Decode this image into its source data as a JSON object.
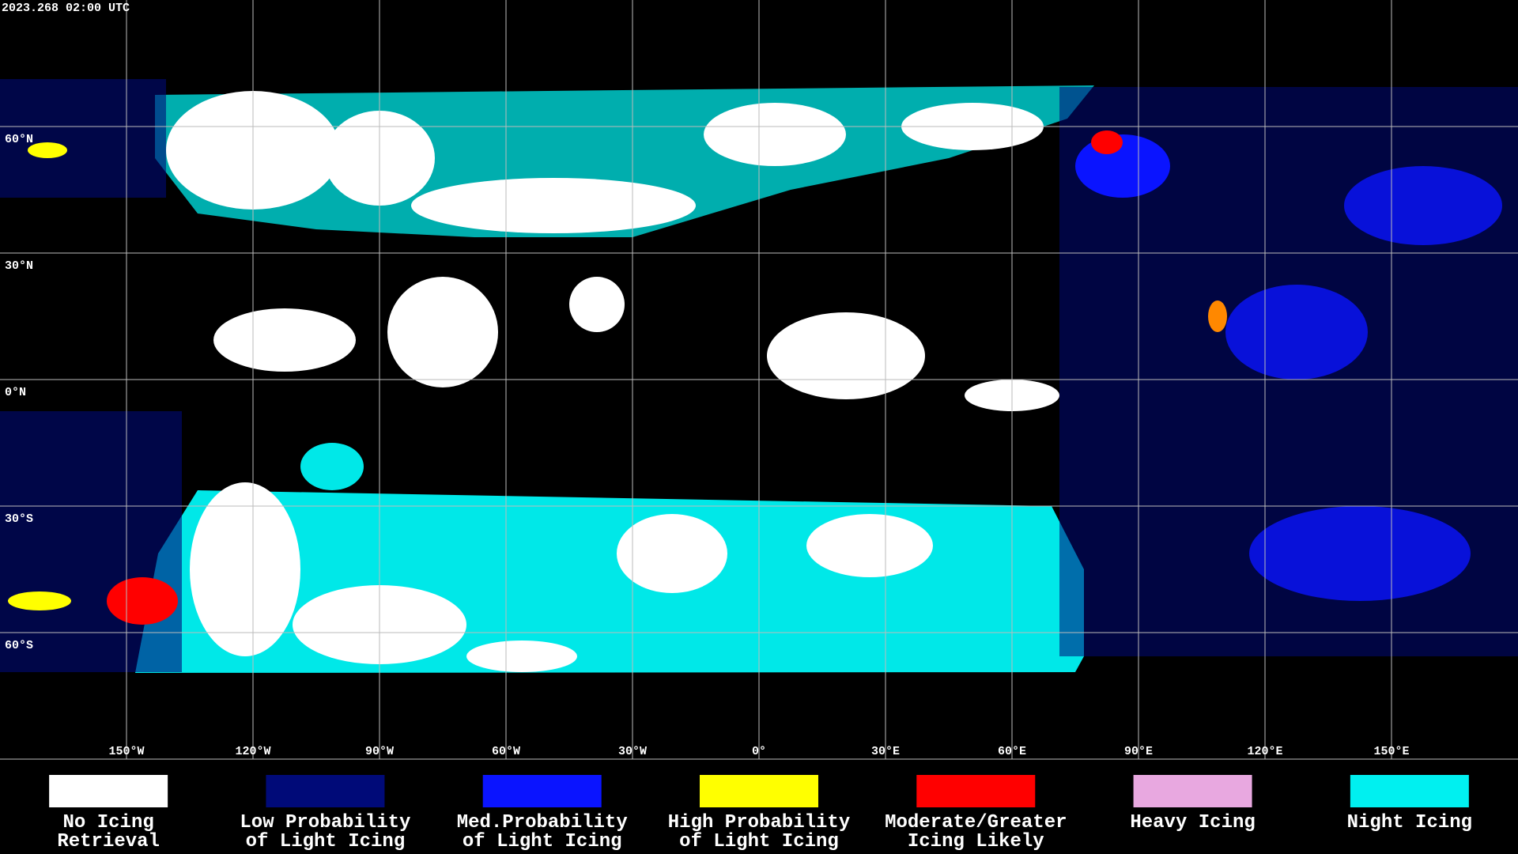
{
  "header": {
    "timestamp": "2023.268 02:00 UTC"
  },
  "map": {
    "lat_labels": [
      "60°N",
      "30°N",
      "0°N",
      "30°S",
      "60°S"
    ],
    "lon_labels": [
      "150°W",
      "120°W",
      "90°W",
      "60°W",
      "30°W",
      "0°",
      "30°E",
      "60°E",
      "90°E",
      "120°E",
      "150°E"
    ]
  },
  "legend": {
    "items": [
      {
        "lines": [
          "No Icing",
          "Retrieval"
        ],
        "color": "#ffffff"
      },
      {
        "lines": [
          "Low Probability",
          "of Light Icing"
        ],
        "color": "#000a78"
      },
      {
        "lines": [
          "Med.Probability",
          "of Light Icing"
        ],
        "color": "#0a14ff"
      },
      {
        "lines": [
          "High Probability",
          "of Light Icing"
        ],
        "color": "#ffff00"
      },
      {
        "lines": [
          "Moderate/Greater",
          "Icing Likely"
        ],
        "color": "#ff0000"
      },
      {
        "lines": [
          "Heavy Icing"
        ],
        "color": "#e8a8e0"
      },
      {
        "lines": [
          "Night Icing"
        ],
        "color": "#00f0f0"
      }
    ]
  }
}
